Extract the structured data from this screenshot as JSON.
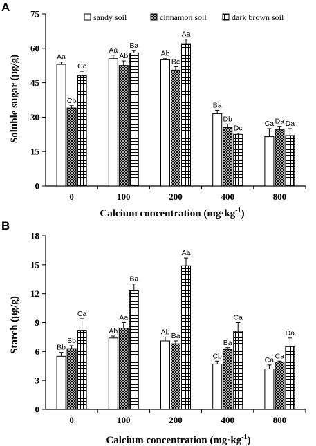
{
  "series_styles": [
    {
      "fill": "#ffffff",
      "pattern": "plain"
    },
    {
      "fill": "url(#pat-cross)",
      "pattern": "crosshatch"
    },
    {
      "fill": "url(#pat-grid)",
      "pattern": "grid"
    }
  ],
  "chart_data": [
    {
      "type": "bar",
      "panel": "A",
      "categories": [
        "0",
        "100",
        "200",
        "400",
        "800"
      ],
      "xlabel": "Calcium concentration (mg·kg-1)",
      "ylabel": "Soluble sugar (μg/g)",
      "ylim": [
        0,
        75
      ],
      "yticks": [
        "0",
        "15",
        "30",
        "45",
        "60",
        "75"
      ],
      "legend": {
        "position": "top",
        "entries": [
          "sandy soil",
          "cinnamon soil",
          "dark brown soil"
        ]
      },
      "series": [
        {
          "name": "sandy soil",
          "values": [
            53,
            55.5,
            55,
            31.5,
            21.5
          ],
          "errors": [
            1,
            1.5,
            0.5,
            1.5,
            3.5
          ],
          "labels": [
            "Aa",
            "Aa",
            "Ab",
            "Ba",
            "Ca"
          ]
        },
        {
          "name": "cinnamon soil",
          "values": [
            34,
            52.5,
            50.5,
            25.5,
            24.5
          ],
          "errors": [
            1,
            2,
            1.5,
            1.5,
            1.5
          ],
          "labels": [
            "Cb",
            "Ab",
            "Bc",
            "Db",
            "Da"
          ]
        },
        {
          "name": "dark brown soil",
          "values": [
            48,
            58,
            62,
            22.5,
            22
          ],
          "errors": [
            2,
            1,
            2,
            0.5,
            3
          ],
          "labels": [
            "Cc",
            "Ba",
            "Aa",
            "Dc",
            "Da"
          ]
        }
      ]
    },
    {
      "type": "bar",
      "panel": "B",
      "categories": [
        "0",
        "100",
        "200",
        "400",
        "800"
      ],
      "xlabel": "Calcium concentration (mg·kg-1)",
      "ylabel": "Starch (μg/g)",
      "ylim": [
        0,
        18
      ],
      "yticks": [
        "0",
        "3",
        "6",
        "9",
        "12",
        "15",
        "18"
      ],
      "series": [
        {
          "name": "sandy soil",
          "values": [
            5.5,
            7.4,
            7.1,
            4.7,
            4.2
          ],
          "errors": [
            0.4,
            0.2,
            0.4,
            0.3,
            0.4
          ],
          "labels": [
            "Bb",
            "Ab",
            "Ab",
            "Cb",
            "Ca"
          ]
        },
        {
          "name": "cinnamon soil",
          "values": [
            6.3,
            8.4,
            6.8,
            6.2,
            4.9
          ],
          "errors": [
            0.3,
            0.6,
            0.3,
            0.2,
            0.1
          ],
          "labels": [
            "Bb",
            "Aa",
            "Ba",
            "Ba",
            "Ca"
          ]
        },
        {
          "name": "dark brown soil",
          "values": [
            8.2,
            12.3,
            14.9,
            8.1,
            6.5
          ],
          "errors": [
            1.2,
            0.7,
            0.8,
            0.9,
            0.9
          ],
          "labels": [
            "Ca",
            "Ba",
            "Aa",
            "Ca",
            "Da"
          ]
        }
      ]
    }
  ]
}
